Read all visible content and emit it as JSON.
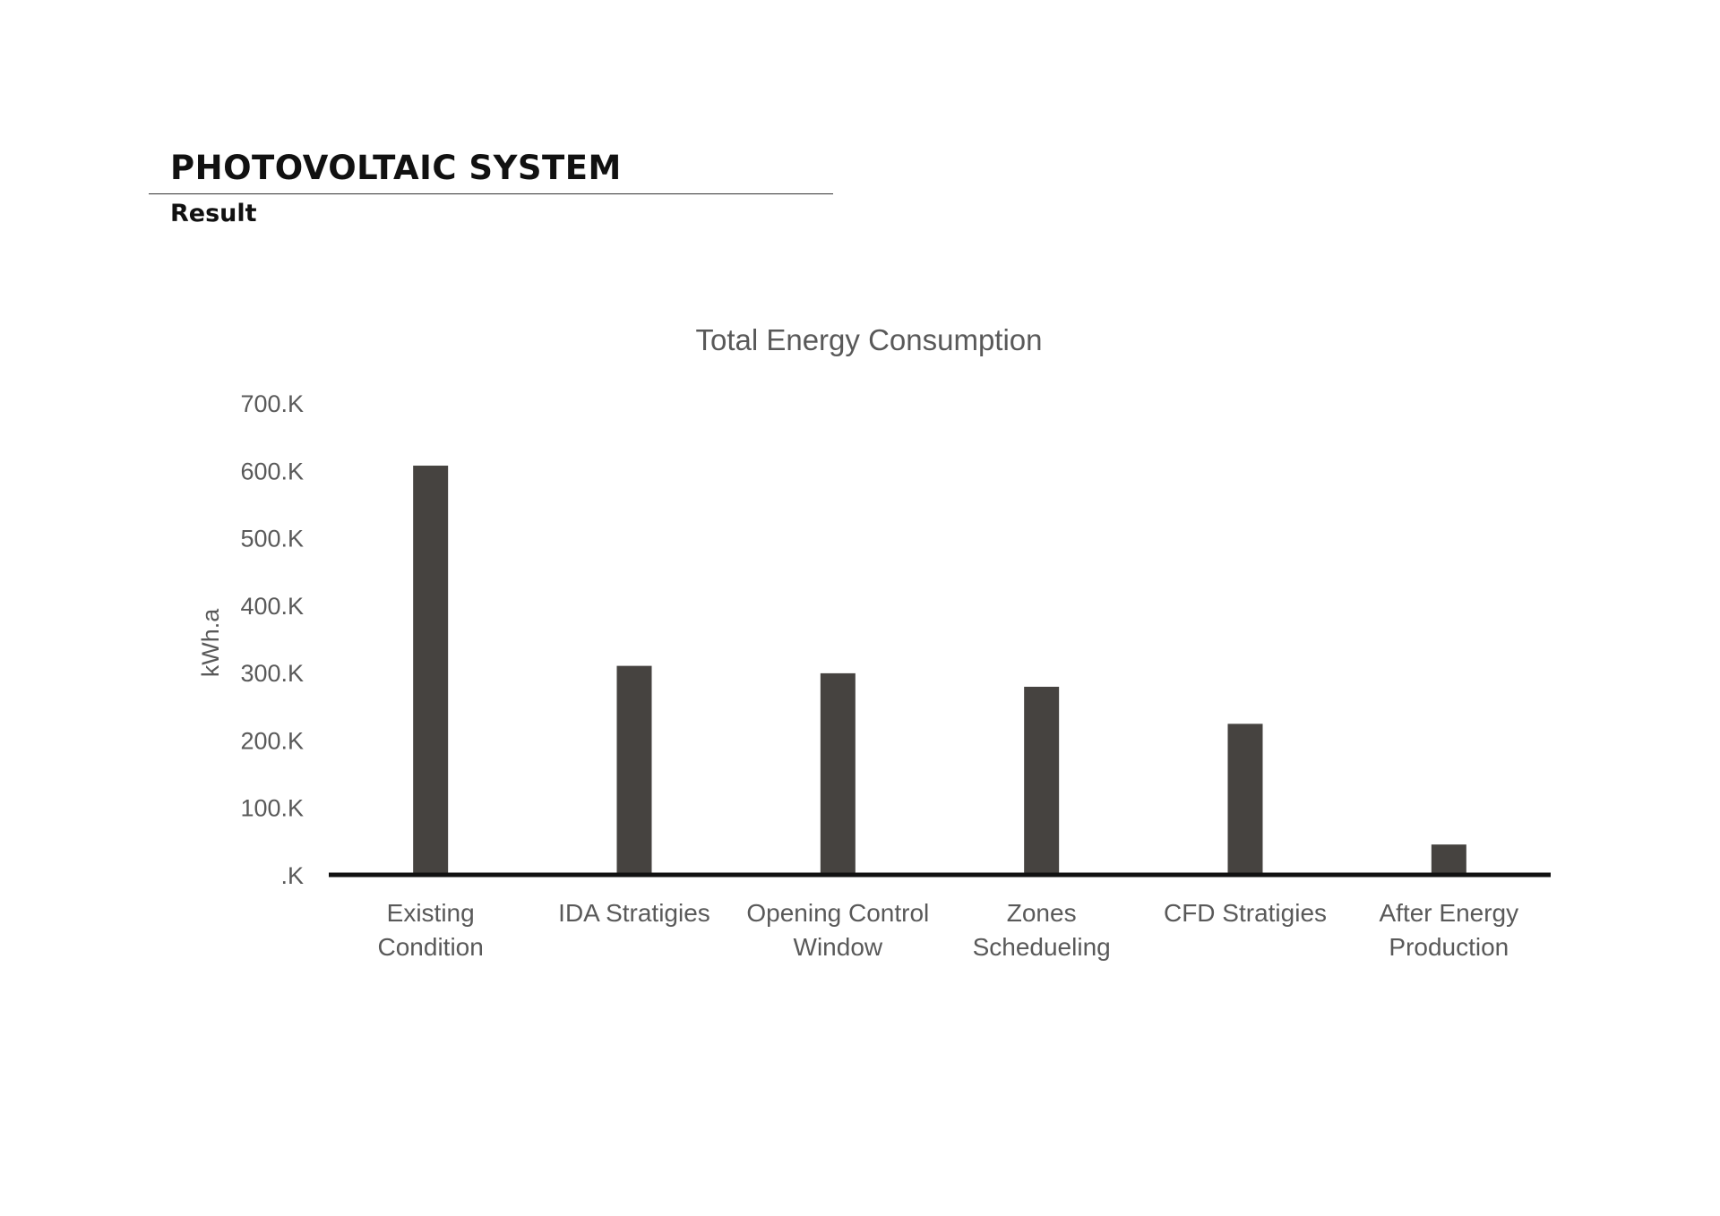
{
  "page": {
    "title": "PHOTOVOLTAIC SYSTEM",
    "subtitle": "Result"
  },
  "colors": {
    "bar": "#464340",
    "axis": "#111111",
    "text": "#595959"
  },
  "chart_data": {
    "type": "bar",
    "title": "Total Energy Consumption",
    "xlabel": "",
    "ylabel": "kWh.a",
    "ylim": [
      0,
      700000
    ],
    "yticks": [
      {
        "value": 0,
        "label": ".K"
      },
      {
        "value": 100000,
        "label": "100.K"
      },
      {
        "value": 200000,
        "label": "200.K"
      },
      {
        "value": 300000,
        "label": "300.K"
      },
      {
        "value": 400000,
        "label": "400.K"
      },
      {
        "value": 500000,
        "label": "500.K"
      },
      {
        "value": 600000,
        "label": "600.K"
      },
      {
        "value": 700000,
        "label": "700.K"
      }
    ],
    "categories": [
      [
        "Existing",
        "Condition"
      ],
      [
        "IDA Stratigies"
      ],
      [
        "Opening Control",
        "Window"
      ],
      [
        "Zones",
        "Schedueling"
      ],
      [
        "CFD Stratigies"
      ],
      [
        "After Energy",
        "Production"
      ]
    ],
    "values": [
      607000,
      310000,
      299000,
      279000,
      224000,
      45000
    ],
    "grid": false,
    "legend": "none"
  }
}
